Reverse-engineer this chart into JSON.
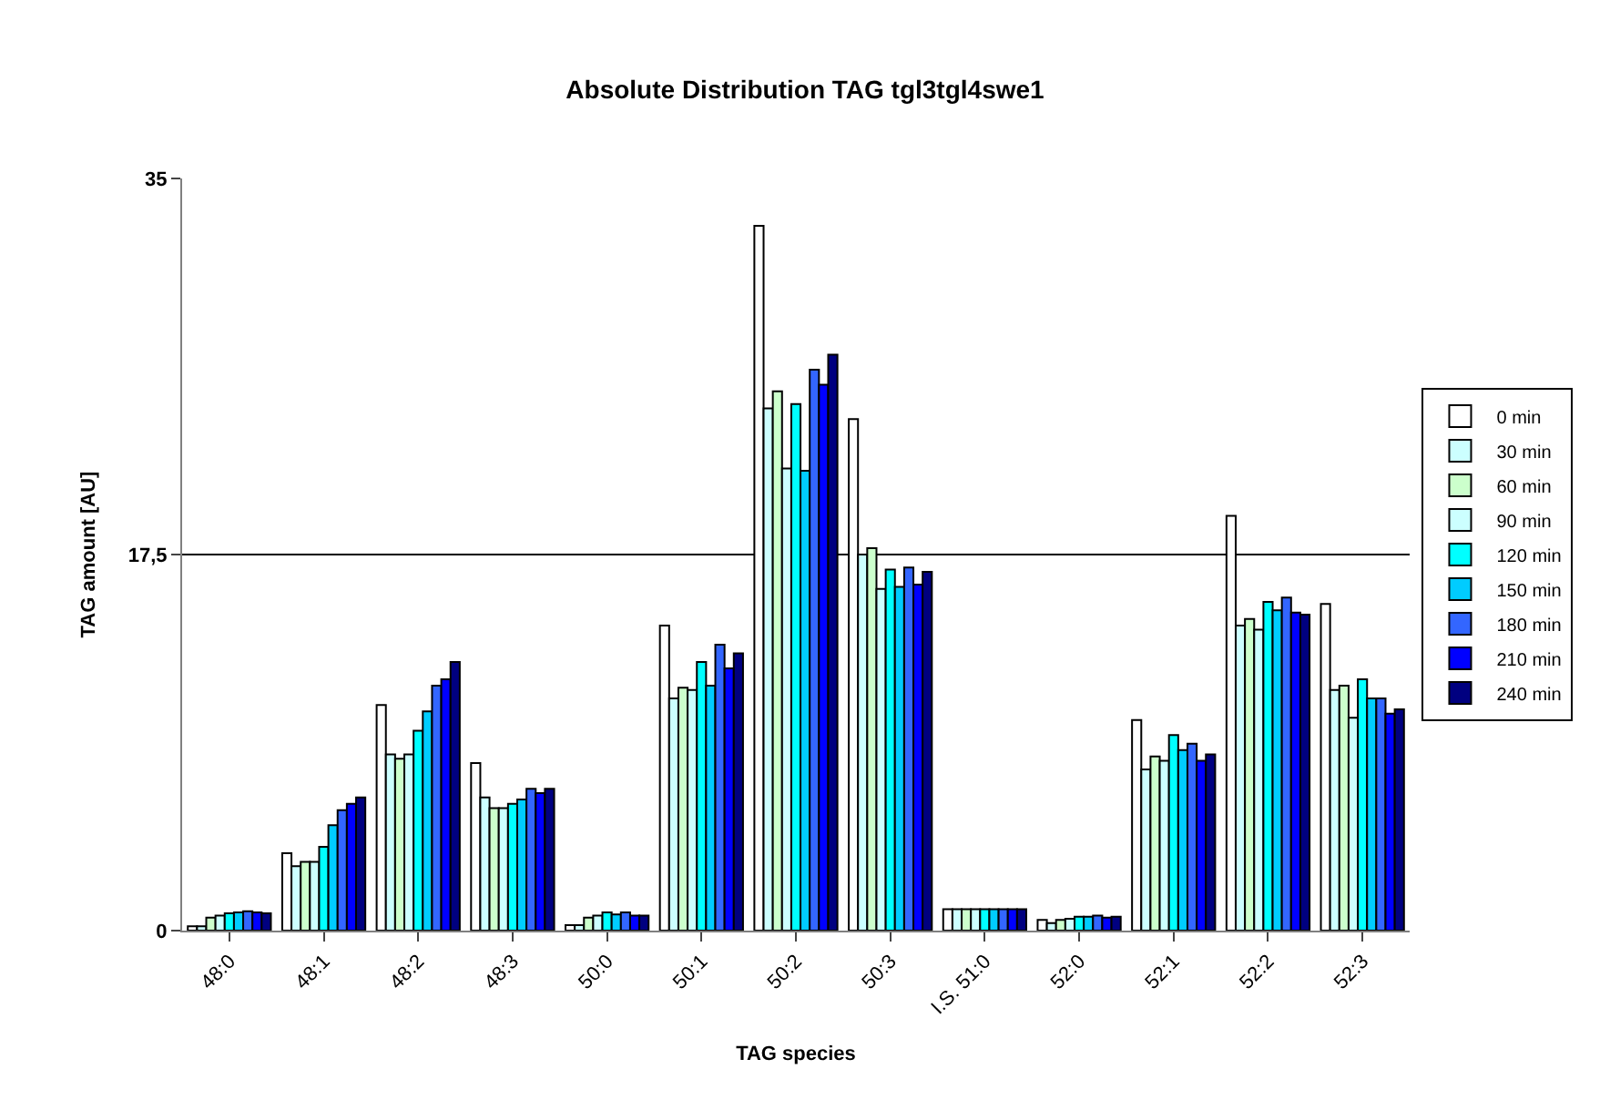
{
  "chart_data": {
    "type": "bar",
    "title": "Absolute Distribution TAG tgl3tgl4swe1",
    "xlabel": "TAG species",
    "ylabel": "TAG amount [AU]",
    "categories": [
      "48:0",
      "48:1",
      "48:2",
      "48:3",
      "50:0",
      "50:1",
      "50:2",
      "50:3",
      "I.S. 51:0",
      "52:0",
      "52:1",
      "52:2",
      "52:3"
    ],
    "series": [
      {
        "name": "0 min",
        "color": "#ffffff",
        "values": [
          0.2,
          3.6,
          10.5,
          7.8,
          0.25,
          14.2,
          32.8,
          23.8,
          1.0,
          0.5,
          9.8,
          19.3,
          15.2
        ]
      },
      {
        "name": "30 min",
        "color": "#ccffff",
        "values": [
          0.2,
          3.0,
          8.2,
          6.2,
          0.25,
          10.8,
          24.3,
          17.5,
          1.0,
          0.35,
          7.5,
          14.2,
          11.2
        ]
      },
      {
        "name": "60 min",
        "color": "#ccffcc",
        "values": [
          0.6,
          3.2,
          8.0,
          5.7,
          0.6,
          11.3,
          25.1,
          17.8,
          1.0,
          0.5,
          8.1,
          14.5,
          11.4
        ]
      },
      {
        "name": "90 min",
        "color": "#ccffff",
        "values": [
          0.7,
          3.2,
          8.2,
          5.7,
          0.7,
          11.2,
          21.5,
          15.9,
          1.0,
          0.55,
          7.9,
          14.0,
          9.9
        ]
      },
      {
        "name": "120 min",
        "color": "#00ffff",
        "values": [
          0.8,
          3.9,
          9.3,
          5.9,
          0.85,
          12.5,
          24.5,
          16.8,
          1.0,
          0.65,
          9.1,
          15.3,
          11.7
        ]
      },
      {
        "name": "150 min",
        "color": "#00ccff",
        "values": [
          0.85,
          4.9,
          10.2,
          6.1,
          0.75,
          11.4,
          21.4,
          16.0,
          1.0,
          0.65,
          8.4,
          14.9,
          10.8
        ]
      },
      {
        "name": "180 min",
        "color": "#3366ff",
        "values": [
          0.9,
          5.6,
          11.4,
          6.6,
          0.85,
          13.3,
          26.1,
          16.9,
          1.0,
          0.7,
          8.7,
          15.5,
          10.8
        ]
      },
      {
        "name": "210 min",
        "color": "#0000ff",
        "values": [
          0.85,
          5.9,
          11.7,
          6.4,
          0.7,
          12.2,
          25.4,
          16.1,
          1.0,
          0.6,
          7.9,
          14.8,
          10.1
        ]
      },
      {
        "name": "240 min",
        "color": "#000080",
        "values": [
          0.8,
          6.2,
          12.5,
          6.6,
          0.7,
          12.9,
          26.8,
          16.7,
          1.0,
          0.65,
          8.2,
          14.7,
          10.3
        ]
      }
    ],
    "ylim": [
      0,
      35
    ],
    "yticks": [
      0,
      {
        "value": 17.5,
        "label": "17,5"
      },
      35
    ],
    "grid": "y",
    "legend": "right"
  }
}
